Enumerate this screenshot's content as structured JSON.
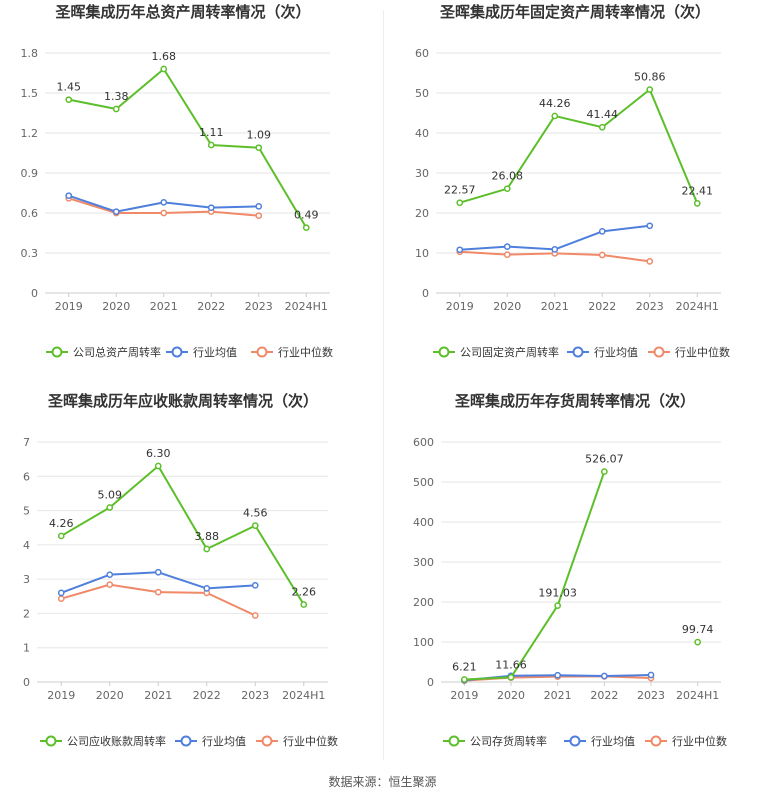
{
  "source": "数据来源：恒生聚源",
  "colors": {
    "company": "#5cbf2a",
    "avg": "#4e7fdc",
    "median": "#f08968"
  },
  "chart_data": [
    {
      "type": "line",
      "title": "圣晖集成历年总资产周转率情况（次）",
      "categories": [
        "2019",
        "2020",
        "2021",
        "2022",
        "2023",
        "2024H1"
      ],
      "ylim": [
        0,
        1.8
      ],
      "yticks": [
        "0",
        "0.3",
        "0.6",
        "0.9",
        "1.2",
        "1.5",
        "1.8"
      ],
      "grid": true,
      "legend_position": "bottom",
      "series": [
        {
          "name": "公司总资产周转率",
          "values": [
            1.45,
            1.38,
            1.68,
            1.11,
            1.09,
            0.49
          ],
          "labels": [
            "1.45",
            "1.38",
            "1.68",
            "1.11",
            "1.09",
            "0.49"
          ]
        },
        {
          "name": "行业均值",
          "values": [
            0.73,
            0.61,
            0.68,
            0.64,
            0.65,
            null
          ]
        },
        {
          "name": "行业中位数",
          "values": [
            0.71,
            0.6,
            0.6,
            0.61,
            0.58,
            null
          ]
        }
      ]
    },
    {
      "type": "line",
      "title": "圣晖集成历年固定资产周转率情况（次）",
      "categories": [
        "2019",
        "2020",
        "2021",
        "2022",
        "2023",
        "2024H1"
      ],
      "ylim": [
        0,
        60
      ],
      "yticks": [
        "0",
        "10",
        "20",
        "30",
        "40",
        "50",
        "60"
      ],
      "grid": true,
      "legend_position": "bottom",
      "series": [
        {
          "name": "公司固定资产周转率",
          "values": [
            22.57,
            26.08,
            44.26,
            41.44,
            50.86,
            22.41
          ],
          "labels": [
            "22.57",
            "26.08",
            "44.26",
            "41.44",
            "50.86",
            "22.41"
          ]
        },
        {
          "name": "行业均值",
          "values": [
            10.8,
            11.6,
            10.9,
            15.4,
            16.8,
            null
          ]
        },
        {
          "name": "行业中位数",
          "values": [
            10.3,
            9.6,
            9.9,
            9.5,
            7.9,
            null
          ]
        }
      ]
    },
    {
      "type": "line",
      "title": "圣晖集成历年应收账款周转率情况（次）",
      "categories": [
        "2019",
        "2020",
        "2021",
        "2022",
        "2023",
        "2024H1"
      ],
      "ylim": [
        0,
        7
      ],
      "yticks": [
        "0",
        "1",
        "2",
        "3",
        "4",
        "5",
        "6",
        "7"
      ],
      "grid": true,
      "legend_position": "bottom",
      "series": [
        {
          "name": "公司应收账款周转率",
          "values": [
            4.26,
            5.09,
            6.3,
            3.88,
            4.56,
            2.26
          ],
          "labels": [
            "4.26",
            "5.09",
            "6.30",
            "3.88",
            "4.56",
            "2.26"
          ]
        },
        {
          "name": "行业均值",
          "values": [
            2.6,
            3.13,
            3.2,
            2.73,
            2.82,
            null
          ]
        },
        {
          "name": "行业中位数",
          "values": [
            2.43,
            2.84,
            2.62,
            2.6,
            1.94,
            null
          ]
        }
      ]
    },
    {
      "type": "line",
      "title": "圣晖集成历年存货周转率情况（次）",
      "categories": [
        "2019",
        "2020",
        "2021",
        "2022",
        "2023",
        "2024H1"
      ],
      "ylim": [
        0,
        600
      ],
      "yticks": [
        "0",
        "100",
        "200",
        "300",
        "400",
        "500",
        "600"
      ],
      "grid": true,
      "legend_position": "bottom",
      "series": [
        {
          "name": "公司存货周转率",
          "values": [
            6.21,
            11.66,
            191.03,
            526.07,
            null,
            99.74
          ],
          "labels": [
            "6.21",
            "11.66",
            "191.03",
            "526.07",
            "",
            "99.74"
          ]
        },
        {
          "name": "行业均值",
          "values": [
            4.5,
            15.5,
            17.0,
            15.0,
            17.5,
            null
          ]
        },
        {
          "name": "行业中位数",
          "values": [
            3.5,
            11.0,
            13.5,
            14.0,
            10.0,
            null
          ]
        }
      ]
    }
  ]
}
